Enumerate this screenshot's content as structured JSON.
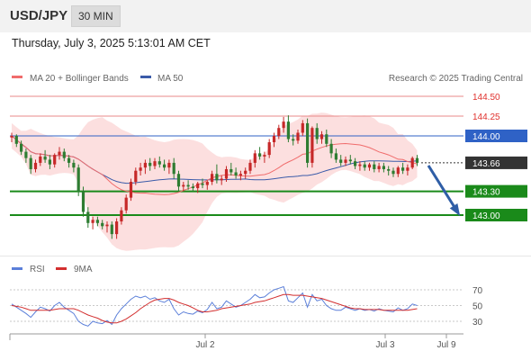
{
  "header": {
    "symbol": "USD/JPY",
    "timeframe": "30 MIN",
    "datetime": "Thursday, July 3, 2025 5:13:01 AM CET"
  },
  "legend": {
    "ma20_label": "MA 20 + Bollinger Bands",
    "ma50_label": "MA 50",
    "credit": "Research © 2025 Trading Central",
    "rsi_label": "RSI",
    "rsi_ma_label": "9MA"
  },
  "colors": {
    "ma20": "#f06c6c",
    "ma50": "#3b5ba9",
    "band_fill": "#fcdcdc",
    "resistance": "#e88a8a",
    "pivot": "#2f62c6",
    "support": "#1a8a1a",
    "current": "#333333",
    "up_candle": "#c62828",
    "down_candle": "#2e7d32",
    "arrow": "#2f5ea6",
    "rsi": "#5b7fd9",
    "rsi_ma": "#d32f2f"
  },
  "chart_data": [
    {
      "type": "candlestick",
      "title": "USD/JPY 30 MIN",
      "y_axis_range": [
        142.5,
        144.7
      ],
      "levels": [
        {
          "label": "144.50",
          "value": 144.5,
          "kind": "resistance"
        },
        {
          "label": "144.25",
          "value": 144.25,
          "kind": "resistance"
        },
        {
          "label": "144.00",
          "value": 144.0,
          "kind": "pivot"
        },
        {
          "label": "143.66",
          "value": 143.66,
          "kind": "current"
        },
        {
          "label": "143.30",
          "value": 143.3,
          "kind": "support"
        },
        {
          "label": "143.00",
          "value": 143.0,
          "kind": "support"
        }
      ],
      "candles_ohlc": [
        [
          143.98,
          144.04,
          143.92,
          144.0
        ],
        [
          144.0,
          144.02,
          143.86,
          143.9
        ],
        [
          143.9,
          143.94,
          143.76,
          143.8
        ],
        [
          143.8,
          143.84,
          143.66,
          143.72
        ],
        [
          143.72,
          143.76,
          143.52,
          143.58
        ],
        [
          143.58,
          143.7,
          143.54,
          143.66
        ],
        [
          143.66,
          143.78,
          143.62,
          143.74
        ],
        [
          143.74,
          143.82,
          143.66,
          143.7
        ],
        [
          143.7,
          143.76,
          143.58,
          143.64
        ],
        [
          143.64,
          143.78,
          143.6,
          143.76
        ],
        [
          143.76,
          143.86,
          143.7,
          143.8
        ],
        [
          143.8,
          143.84,
          143.68,
          143.72
        ],
        [
          143.72,
          143.76,
          143.6,
          143.66
        ],
        [
          143.66,
          143.7,
          143.54,
          143.6
        ],
        [
          143.6,
          143.64,
          143.24,
          143.3
        ],
        [
          143.3,
          143.36,
          142.98,
          143.04
        ],
        [
          143.04,
          143.1,
          142.84,
          142.9
        ],
        [
          142.9,
          142.98,
          142.82,
          142.94
        ],
        [
          142.94,
          142.98,
          142.86,
          142.9
        ],
        [
          142.9,
          142.94,
          142.82,
          142.86
        ],
        [
          142.86,
          142.92,
          142.78,
          142.88
        ],
        [
          142.88,
          142.92,
          142.7,
          142.76
        ],
        [
          142.76,
          142.96,
          142.7,
          142.92
        ],
        [
          142.92,
          143.1,
          142.88,
          143.06
        ],
        [
          143.06,
          143.26,
          143.02,
          143.22
        ],
        [
          143.22,
          143.46,
          143.18,
          143.42
        ],
        [
          143.42,
          143.6,
          143.38,
          143.56
        ],
        [
          143.56,
          143.66,
          143.5,
          143.6
        ],
        [
          143.6,
          143.7,
          143.52,
          143.66
        ],
        [
          143.66,
          143.72,
          143.56,
          143.62
        ],
        [
          143.62,
          143.72,
          143.58,
          143.68
        ],
        [
          143.68,
          143.74,
          143.6,
          143.64
        ],
        [
          143.64,
          143.7,
          143.56,
          143.6
        ],
        [
          143.6,
          143.7,
          143.52,
          143.66
        ],
        [
          143.66,
          143.72,
          143.46,
          143.52
        ],
        [
          143.52,
          143.56,
          143.3,
          143.36
        ],
        [
          143.36,
          143.42,
          143.3,
          143.38
        ],
        [
          143.38,
          143.44,
          143.32,
          143.36
        ],
        [
          143.36,
          143.4,
          143.3,
          143.34
        ],
        [
          143.34,
          143.42,
          143.28,
          143.4
        ],
        [
          143.4,
          143.46,
          143.34,
          143.38
        ],
        [
          143.38,
          143.44,
          143.32,
          143.42
        ],
        [
          143.42,
          143.56,
          143.38,
          143.52
        ],
        [
          143.52,
          143.64,
          143.4,
          143.44
        ],
        [
          143.44,
          143.5,
          143.38,
          143.46
        ],
        [
          143.46,
          143.62,
          143.42,
          143.58
        ],
        [
          143.58,
          143.66,
          143.5,
          143.54
        ],
        [
          143.54,
          143.6,
          143.46,
          143.5
        ],
        [
          143.5,
          143.56,
          143.44,
          143.52
        ],
        [
          143.52,
          143.6,
          143.46,
          143.56
        ],
        [
          143.56,
          143.7,
          143.52,
          143.66
        ],
        [
          143.66,
          143.82,
          143.6,
          143.78
        ],
        [
          143.78,
          143.86,
          143.7,
          143.74
        ],
        [
          143.74,
          143.8,
          143.66,
          143.76
        ],
        [
          143.76,
          143.96,
          143.72,
          143.92
        ],
        [
          143.92,
          144.04,
          143.86,
          144.0
        ],
        [
          144.0,
          144.14,
          143.96,
          144.1
        ],
        [
          144.1,
          144.24,
          144.04,
          144.18
        ],
        [
          144.18,
          144.26,
          143.92,
          143.96
        ],
        [
          143.96,
          144.02,
          143.88,
          143.94
        ],
        [
          143.94,
          144.08,
          143.9,
          144.04
        ],
        [
          144.04,
          144.2,
          144.0,
          144.16
        ],
        [
          144.16,
          144.22,
          143.6,
          143.66
        ],
        [
          143.66,
          144.12,
          143.6,
          144.1
        ],
        [
          144.1,
          144.16,
          143.9,
          143.96
        ],
        [
          143.96,
          144.06,
          143.9,
          144.02
        ],
        [
          144.02,
          144.08,
          143.86,
          143.9
        ],
        [
          143.9,
          143.96,
          143.72,
          143.78
        ],
        [
          143.78,
          143.84,
          143.66,
          143.7
        ],
        [
          143.7,
          143.76,
          143.62,
          143.66
        ],
        [
          143.66,
          143.74,
          143.62,
          143.7
        ],
        [
          143.7,
          143.76,
          143.64,
          143.68
        ],
        [
          143.68,
          143.72,
          143.58,
          143.62
        ],
        [
          143.62,
          143.68,
          143.56,
          143.64
        ],
        [
          143.64,
          143.68,
          143.56,
          143.6
        ],
        [
          143.6,
          143.66,
          143.56,
          143.64
        ],
        [
          143.64,
          143.68,
          143.54,
          143.58
        ],
        [
          143.58,
          143.66,
          143.54,
          143.62
        ],
        [
          143.62,
          143.66,
          143.54,
          143.58
        ],
        [
          143.58,
          143.62,
          143.5,
          143.56
        ],
        [
          143.56,
          143.6,
          143.48,
          143.52
        ],
        [
          143.52,
          143.62,
          143.48,
          143.6
        ],
        [
          143.6,
          143.66,
          143.52,
          143.56
        ],
        [
          143.56,
          143.64,
          143.5,
          143.6
        ],
        [
          143.6,
          143.74,
          143.58,
          143.72
        ],
        [
          143.72,
          143.76,
          143.62,
          143.66
        ]
      ],
      "forecast_arrow": {
        "from": 143.66,
        "to": 143.0
      }
    },
    {
      "type": "line",
      "title": "RSI",
      "y_ticks": [
        "70",
        "50",
        "30"
      ],
      "y_range": [
        20,
        80
      ],
      "series": [
        {
          "name": "RSI",
          "values": [
            52,
            48,
            44,
            40,
            35,
            42,
            48,
            46,
            43,
            50,
            54,
            48,
            44,
            40,
            30,
            26,
            24,
            30,
            28,
            27,
            31,
            26,
            38,
            46,
            52,
            58,
            62,
            60,
            62,
            58,
            60,
            56,
            54,
            58,
            46,
            38,
            42,
            40,
            39,
            43,
            41,
            45,
            54,
            46,
            48,
            56,
            52,
            48,
            50,
            54,
            58,
            64,
            60,
            61,
            66,
            70,
            72,
            74,
            56,
            54,
            60,
            66,
            48,
            64,
            56,
            58,
            50,
            46,
            44,
            44,
            48,
            46,
            44,
            46,
            44,
            45,
            43,
            46,
            44,
            43,
            42,
            47,
            44,
            46,
            52,
            50
          ]
        },
        {
          "name": "9MA",
          "values": [
            50,
            49,
            48,
            46,
            44,
            44,
            44,
            44,
            44,
            45,
            46,
            46,
            46,
            46,
            44,
            41,
            38,
            36,
            34,
            31,
            29,
            28,
            28,
            30,
            33,
            37,
            41,
            46,
            50,
            54,
            57,
            58,
            59,
            59,
            57,
            54,
            52,
            50,
            47,
            44,
            42,
            42,
            43,
            44,
            46,
            47,
            48,
            49,
            50,
            51,
            52,
            54,
            55,
            56,
            58,
            60,
            62,
            64,
            64,
            63,
            63,
            63,
            62,
            61,
            60,
            59,
            57,
            55,
            53,
            51,
            49,
            47,
            46,
            46,
            45,
            45,
            45,
            45,
            44,
            44,
            44,
            44,
            44,
            44,
            45,
            46
          ]
        }
      ]
    }
  ],
  "x_axis": {
    "labels": [
      "Jul 2",
      "Jul 3",
      "Jul 9"
    ]
  }
}
